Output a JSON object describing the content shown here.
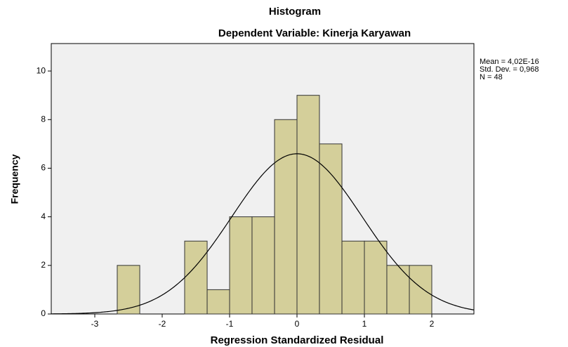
{
  "chart_data": {
    "type": "histogram",
    "title": "Histogram",
    "subtitle": "Dependent Variable: Kinerja Karyawan",
    "x_label": "Regression Standardized Residual",
    "y_label": "Frequency",
    "bins": [
      -2.667,
      -2.333,
      -2,
      -1.667,
      -1.333,
      -1,
      -0.667,
      -0.333,
      0,
      0.333,
      0.667,
      1,
      1.333,
      1.667,
      2
    ],
    "values": [
      2,
      0,
      0,
      3,
      1,
      4,
      4,
      8,
      9,
      7,
      3,
      3,
      2,
      2
    ],
    "color": "#d4cf9a",
    "xlim": [
      -3.646,
      2.625
    ],
    "xticks": [
      -3,
      -2,
      -1,
      0,
      1,
      2
    ],
    "ylim": [
      0,
      11.13
    ],
    "yticks": [
      0,
      2,
      4,
      6,
      8,
      10
    ],
    "normal_curve": {
      "mean": 4.02e-16,
      "std_dev": 0.968,
      "n": 48
    },
    "stats": [
      "Mean = 4,02E-16",
      "Std. Dev. = 0,968",
      "N = 48"
    ],
    "grid": false
  }
}
